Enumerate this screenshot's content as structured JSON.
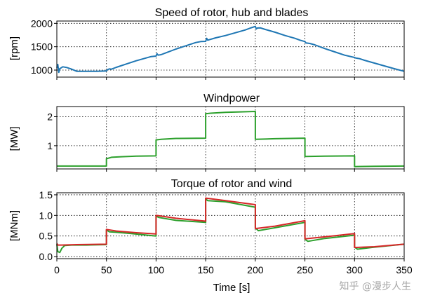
{
  "watermark": "知乎 @漫步人生",
  "chart_data": [
    {
      "type": "line",
      "title": "Speed of rotor, hub and blades",
      "ylabel": "[rpm]",
      "ylim": [
        850,
        2050
      ],
      "yticks": [
        1000,
        1500,
        2000
      ],
      "xlim": [
        0,
        350
      ],
      "grid": true,
      "series": [
        {
          "color": "#1f77b4",
          "points": [
            [
              0,
              1050
            ],
            [
              1,
              1120
            ],
            [
              2,
              950
            ],
            [
              3,
              1030
            ],
            [
              6,
              1070
            ],
            [
              10,
              1055
            ],
            [
              15,
              1020
            ],
            [
              20,
              975
            ],
            [
              30,
              975
            ],
            [
              40,
              975
            ],
            [
              50,
              980
            ],
            [
              51,
              1010
            ],
            [
              53,
              1025
            ],
            [
              55,
              1020
            ],
            [
              60,
              1060
            ],
            [
              70,
              1130
            ],
            [
              80,
              1200
            ],
            [
              90,
              1260
            ],
            [
              95,
              1290
            ],
            [
              100,
              1300
            ],
            [
              101,
              1350
            ],
            [
              102,
              1320
            ],
            [
              105,
              1330
            ],
            [
              110,
              1370
            ],
            [
              120,
              1450
            ],
            [
              130,
              1520
            ],
            [
              140,
              1590
            ],
            [
              145,
              1610
            ],
            [
              150,
              1615
            ],
            [
              151,
              1680
            ],
            [
              152,
              1640
            ],
            [
              160,
              1690
            ],
            [
              170,
              1740
            ],
            [
              180,
              1800
            ],
            [
              190,
              1860
            ],
            [
              195,
              1900
            ],
            [
              200,
              1935
            ],
            [
              201,
              1880
            ],
            [
              202,
              1900
            ],
            [
              205,
              1905
            ],
            [
              210,
              1870
            ],
            [
              220,
              1810
            ],
            [
              230,
              1740
            ],
            [
              240,
              1680
            ],
            [
              245,
              1640
            ],
            [
              250,
              1610
            ],
            [
              251,
              1580
            ],
            [
              255,
              1570
            ],
            [
              260,
              1540
            ],
            [
              270,
              1460
            ],
            [
              280,
              1390
            ],
            [
              290,
              1320
            ],
            [
              300,
              1270
            ],
            [
              301,
              1260
            ],
            [
              305,
              1245
            ],
            [
              310,
              1210
            ],
            [
              320,
              1150
            ],
            [
              330,
              1090
            ],
            [
              340,
              1030
            ],
            [
              350,
              975
            ]
          ]
        }
      ]
    },
    {
      "type": "line",
      "title": "Windpower",
      "ylabel": "[MW]",
      "ylim": [
        0.2,
        2.35
      ],
      "yticks": [
        1,
        2
      ],
      "xlim": [
        0,
        350
      ],
      "grid": true,
      "series": [
        {
          "color": "#2ca02c",
          "points": [
            [
              0,
              0.3
            ],
            [
              50,
              0.3
            ],
            [
              50,
              0.55
            ],
            [
              55,
              0.6
            ],
            [
              65,
              0.62
            ],
            [
              80,
              0.64
            ],
            [
              100,
              0.65
            ],
            [
              100,
              1.2
            ],
            [
              105,
              1.22
            ],
            [
              120,
              1.25
            ],
            [
              150,
              1.26
            ],
            [
              150,
              2.1
            ],
            [
              155,
              2.12
            ],
            [
              170,
              2.15
            ],
            [
              200,
              2.18
            ],
            [
              200,
              1.22
            ],
            [
              220,
              1.24
            ],
            [
              250,
              1.26
            ],
            [
              250,
              0.63
            ],
            [
              270,
              0.64
            ],
            [
              300,
              0.65
            ],
            [
              300,
              0.28
            ],
            [
              320,
              0.29
            ],
            [
              350,
              0.3
            ]
          ]
        }
      ]
    },
    {
      "type": "line",
      "title": "Torque of rotor and wind",
      "ylabel": "[MNm]",
      "ylim": [
        -0.05,
        1.55
      ],
      "yticks": [
        0.0,
        0.5,
        1.0,
        1.5
      ],
      "ytick_labels": [
        "0.0",
        "0.5",
        "1.0",
        "1.5"
      ],
      "xlim": [
        0,
        350
      ],
      "xticks": [
        0,
        50,
        100,
        150,
        200,
        250,
        300,
        350
      ],
      "xlabel": "Time [s]",
      "grid": true,
      "series": [
        {
          "color": "#2ca02c",
          "points": [
            [
              0,
              0.3
            ],
            [
              1,
              0.12
            ],
            [
              3,
              0.1
            ],
            [
              5,
              0.2
            ],
            [
              8,
              0.27
            ],
            [
              15,
              0.28
            ],
            [
              30,
              0.28
            ],
            [
              50,
              0.29
            ],
            [
              50,
              0.65
            ],
            [
              53,
              0.6
            ],
            [
              60,
              0.59
            ],
            [
              75,
              0.56
            ],
            [
              100,
              0.5
            ],
            [
              100,
              0.98
            ],
            [
              103,
              0.95
            ],
            [
              120,
              0.88
            ],
            [
              150,
              0.83
            ],
            [
              150,
              1.4
            ],
            [
              152,
              1.36
            ],
            [
              170,
              1.33
            ],
            [
              200,
              1.2
            ],
            [
              200,
              0.7
            ],
            [
              203,
              0.63
            ],
            [
              220,
              0.7
            ],
            [
              250,
              0.83
            ],
            [
              250,
              0.42
            ],
            [
              253,
              0.37
            ],
            [
              270,
              0.44
            ],
            [
              300,
              0.52
            ],
            [
              300,
              0.23
            ],
            [
              303,
              0.18
            ],
            [
              320,
              0.23
            ],
            [
              350,
              0.3
            ]
          ]
        },
        {
          "color": "#d62728",
          "points": [
            [
              0,
              0.32
            ],
            [
              1,
              0.28
            ],
            [
              5,
              0.28
            ],
            [
              20,
              0.29
            ],
            [
              50,
              0.3
            ],
            [
              50,
              0.66
            ],
            [
              60,
              0.62
            ],
            [
              80,
              0.58
            ],
            [
              100,
              0.55
            ],
            [
              100,
              1.0
            ],
            [
              120,
              0.93
            ],
            [
              150,
              0.86
            ],
            [
              150,
              1.42
            ],
            [
              170,
              1.36
            ],
            [
              200,
              1.26
            ],
            [
              200,
              0.68
            ],
            [
              220,
              0.74
            ],
            [
              250,
              0.87
            ],
            [
              250,
              0.43
            ],
            [
              270,
              0.48
            ],
            [
              300,
              0.56
            ],
            [
              300,
              0.22
            ],
            [
              320,
              0.24
            ],
            [
              350,
              0.3
            ]
          ]
        }
      ]
    }
  ]
}
